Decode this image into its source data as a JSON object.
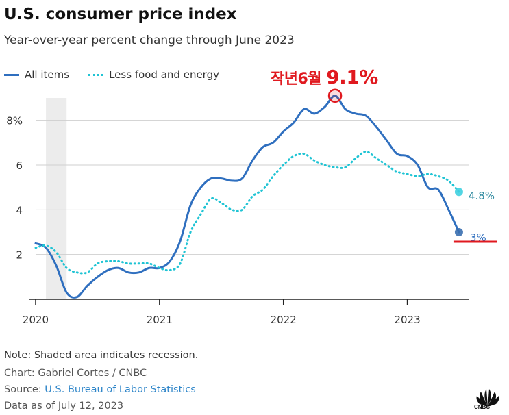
{
  "title": "U.S. consumer price index",
  "subtitle": "Year-over-year percent change through June 2023",
  "annotation": {
    "prefix": "작년6월",
    "value": "9.1%"
  },
  "footer": {
    "note": "Note: Shaded area indicates recession.",
    "credit": "Chart: Gabriel Cortes / CNBC",
    "source_label": "Source: ",
    "source_link": "U.S. Bureau of Labor Statistics",
    "as_of": "Data as of July 12, 2023"
  },
  "logo_text": "CNBC",
  "colors": {
    "all_items": "#2f6fbf",
    "core": "#20c4d4",
    "annotation": "#e0191f",
    "recession": "#ececec"
  },
  "chart_data": {
    "type": "line",
    "xlim": [
      "2020-01",
      "2023-07"
    ],
    "ylim": [
      0,
      9
    ],
    "yticks": [
      2,
      4,
      6,
      8
    ],
    "ytick_labels": [
      "2",
      "4",
      "6",
      "8%"
    ],
    "xticks": [
      "2020",
      "2021",
      "2022",
      "2023"
    ],
    "grid": true,
    "legend": "top-left",
    "recession": [
      "2020-02",
      "2020-04"
    ],
    "series": [
      {
        "name": "All items",
        "style": "solid",
        "x": [
          "2020-01",
          "2020-02",
          "2020-03",
          "2020-04",
          "2020-05",
          "2020-06",
          "2020-07",
          "2020-08",
          "2020-09",
          "2020-10",
          "2020-11",
          "2020-12",
          "2021-01",
          "2021-02",
          "2021-03",
          "2021-04",
          "2021-05",
          "2021-06",
          "2021-07",
          "2021-08",
          "2021-09",
          "2021-10",
          "2021-11",
          "2021-12",
          "2022-01",
          "2022-02",
          "2022-03",
          "2022-04",
          "2022-05",
          "2022-06",
          "2022-07",
          "2022-08",
          "2022-09",
          "2022-10",
          "2022-11",
          "2022-12",
          "2023-01",
          "2023-02",
          "2023-03",
          "2023-04",
          "2023-05",
          "2023-06"
        ],
        "values": [
          2.5,
          2.3,
          1.5,
          0.3,
          0.1,
          0.6,
          1.0,
          1.3,
          1.4,
          1.2,
          1.2,
          1.4,
          1.4,
          1.7,
          2.6,
          4.2,
          5.0,
          5.4,
          5.4,
          5.3,
          5.4,
          6.2,
          6.8,
          7.0,
          7.5,
          7.9,
          8.5,
          8.3,
          8.6,
          9.1,
          8.5,
          8.3,
          8.2,
          7.7,
          7.1,
          6.5,
          6.4,
          6.0,
          5.0,
          4.9,
          4.0,
          3.0
        ],
        "end_label": "3%"
      },
      {
        "name": "Less food and energy",
        "style": "dotted",
        "x": [
          "2020-01",
          "2020-02",
          "2020-03",
          "2020-04",
          "2020-05",
          "2020-06",
          "2020-07",
          "2020-08",
          "2020-09",
          "2020-10",
          "2020-11",
          "2020-12",
          "2021-01",
          "2021-02",
          "2021-03",
          "2021-04",
          "2021-05",
          "2021-06",
          "2021-07",
          "2021-08",
          "2021-09",
          "2021-10",
          "2021-11",
          "2021-12",
          "2022-01",
          "2022-02",
          "2022-03",
          "2022-04",
          "2022-05",
          "2022-06",
          "2022-07",
          "2022-08",
          "2022-09",
          "2022-10",
          "2022-11",
          "2022-12",
          "2023-01",
          "2023-02",
          "2023-03",
          "2023-04",
          "2023-05",
          "2023-06"
        ],
        "values": [
          2.3,
          2.4,
          2.1,
          1.4,
          1.2,
          1.2,
          1.6,
          1.7,
          1.7,
          1.6,
          1.6,
          1.6,
          1.4,
          1.3,
          1.6,
          3.0,
          3.8,
          4.5,
          4.3,
          4.0,
          4.0,
          4.6,
          4.9,
          5.5,
          6.0,
          6.4,
          6.5,
          6.2,
          6.0,
          5.9,
          5.9,
          6.3,
          6.6,
          6.3,
          6.0,
          5.7,
          5.6,
          5.5,
          5.6,
          5.5,
          5.3,
          4.8
        ],
        "end_label": "4.8%"
      }
    ]
  }
}
